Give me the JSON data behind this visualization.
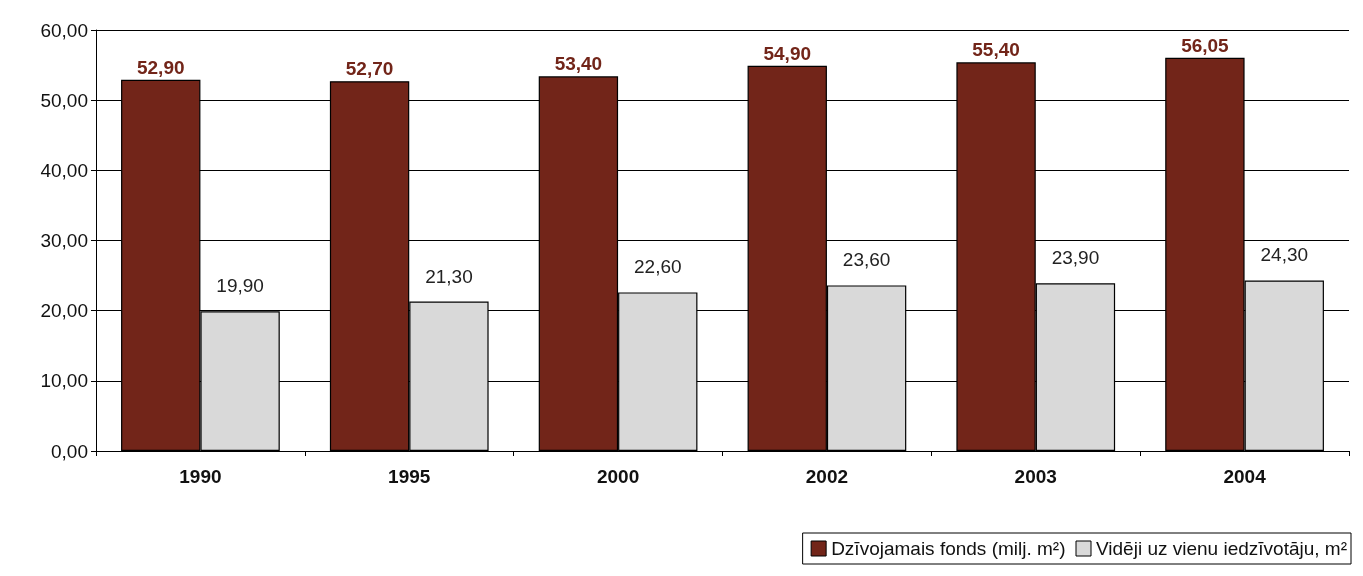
{
  "chart_data": {
    "type": "bar",
    "categories": [
      "1990",
      "1995",
      "2000",
      "2002",
      "2003",
      "2004"
    ],
    "series": [
      {
        "name": "Dzīvojamais fonds (milj. m²)",
        "color": "#722519",
        "values": [
          52.9,
          52.7,
          53.4,
          54.9,
          55.4,
          56.05
        ],
        "value_labels": [
          "52,90",
          "52,70",
          "53,40",
          "54,90",
          "55,40",
          "56,05"
        ]
      },
      {
        "name": "Vidēji uz vienu iedzīvotāju, m²",
        "color": "#d9d9d9",
        "values": [
          19.9,
          21.3,
          22.6,
          23.6,
          23.9,
          24.3
        ],
        "value_labels": [
          "19,90",
          "21,30",
          "22,60",
          "23,60",
          "23,90",
          "24,30"
        ]
      }
    ],
    "ylim": [
      0,
      60
    ],
    "yticks": [
      {
        "value": 0,
        "label": "0,00"
      },
      {
        "value": 10,
        "label": "10,00"
      },
      {
        "value": 20,
        "label": "20,00"
      },
      {
        "value": 30,
        "label": "30,00"
      },
      {
        "value": 40,
        "label": "40,00"
      },
      {
        "value": 50,
        "label": "50,00"
      },
      {
        "value": 60,
        "label": "60,00"
      }
    ],
    "grid": "y",
    "legend": "bottom right"
  }
}
